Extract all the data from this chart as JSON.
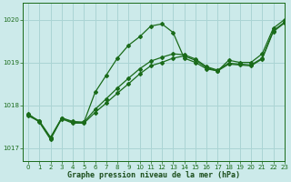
{
  "title": "Graphe pression niveau de la mer (hPa)",
  "bg_color": "#cceaea",
  "grid_color": "#aad4d4",
  "line_color": "#1a6b1a",
  "xlim": [
    -0.5,
    23
  ],
  "ylim": [
    1016.7,
    1020.4
  ],
  "xticks": [
    0,
    1,
    2,
    3,
    4,
    5,
    6,
    7,
    8,
    9,
    10,
    11,
    12,
    13,
    14,
    15,
    16,
    17,
    18,
    19,
    20,
    21,
    22,
    23
  ],
  "yticks": [
    1017,
    1018,
    1019,
    1020
  ],
  "series_peak": [
    1017.8,
    1017.6,
    1017.2,
    1017.7,
    1017.6,
    1017.6,
    1018.3,
    1018.7,
    1019.1,
    1019.4,
    1019.6,
    1019.85,
    1019.9,
    1019.7,
    1019.1,
    1019.0,
    1018.85,
    1018.8,
    1019.05,
    1019.0,
    1019.0,
    1019.2,
    1019.8,
    1020.0
  ],
  "series_low": [
    1017.75,
    1017.62,
    1017.22,
    1017.68,
    1017.58,
    1017.58,
    1017.83,
    1018.05,
    1018.28,
    1018.5,
    1018.73,
    1018.92,
    1019.0,
    1019.1,
    1019.15,
    1019.05,
    1018.88,
    1018.8,
    1018.96,
    1018.94,
    1018.92,
    1019.08,
    1019.72,
    1019.92
  ],
  "series_mid": [
    1017.78,
    1017.63,
    1017.25,
    1017.7,
    1017.62,
    1017.6,
    1017.9,
    1018.15,
    1018.4,
    1018.63,
    1018.85,
    1019.03,
    1019.12,
    1019.2,
    1019.18,
    1019.08,
    1018.9,
    1018.82,
    1018.98,
    1018.96,
    1018.94,
    1019.1,
    1019.74,
    1019.94
  ]
}
